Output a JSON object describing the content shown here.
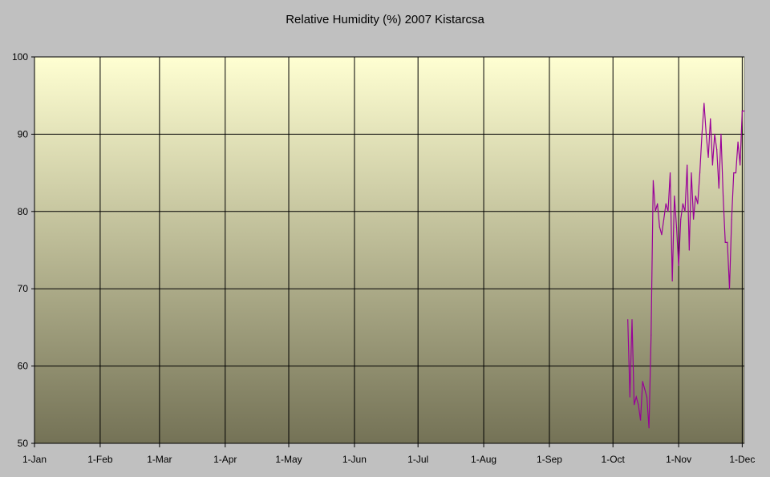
{
  "chart_data": {
    "type": "line",
    "title": "Relative Humidity (%) 2007 Kistarcsa",
    "xlabel": "",
    "ylabel": "",
    "ylim": [
      50,
      100
    ],
    "yticks": [
      50,
      60,
      70,
      80,
      90,
      100
    ],
    "xlim": [
      "2007-01-01",
      "2007-12-02"
    ],
    "xticks": [
      {
        "date": "2007-01-01",
        "label": "1-Jan"
      },
      {
        "date": "2007-02-01",
        "label": "1-Feb"
      },
      {
        "date": "2007-03-01",
        "label": "1-Mar"
      },
      {
        "date": "2007-04-01",
        "label": "1-Apr"
      },
      {
        "date": "2007-05-01",
        "label": "1-May"
      },
      {
        "date": "2007-06-01",
        "label": "1-Jun"
      },
      {
        "date": "2007-07-01",
        "label": "1-Jul"
      },
      {
        "date": "2007-08-01",
        "label": "1-Aug"
      },
      {
        "date": "2007-09-01",
        "label": "1-Sep"
      },
      {
        "date": "2007-10-01",
        "label": "1-Oct"
      },
      {
        "date": "2007-11-01",
        "label": "1-Nov"
      },
      {
        "date": "2007-12-01",
        "label": "1-Dec"
      }
    ],
    "grid": true,
    "legend": "none",
    "colors": {
      "line": "#990099",
      "plot_top": "#ffffd2",
      "plot_bottom": "#747256",
      "background": "#c0c0c0"
    },
    "series": [
      {
        "start_date": "2007-10-08",
        "step": "1 day",
        "values": [
          66,
          56,
          66,
          55,
          56,
          55,
          53,
          58,
          57,
          56,
          52,
          64,
          84,
          80,
          81,
          78,
          77,
          79,
          81,
          80,
          85,
          71,
          82,
          78,
          73,
          79,
          81,
          80,
          86,
          75,
          85,
          79,
          82,
          81,
          85,
          90,
          94,
          90,
          87,
          92,
          86,
          90,
          88,
          83,
          90,
          82,
          76,
          76,
          70,
          79,
          85,
          85,
          89,
          86,
          93,
          93
        ]
      }
    ]
  }
}
